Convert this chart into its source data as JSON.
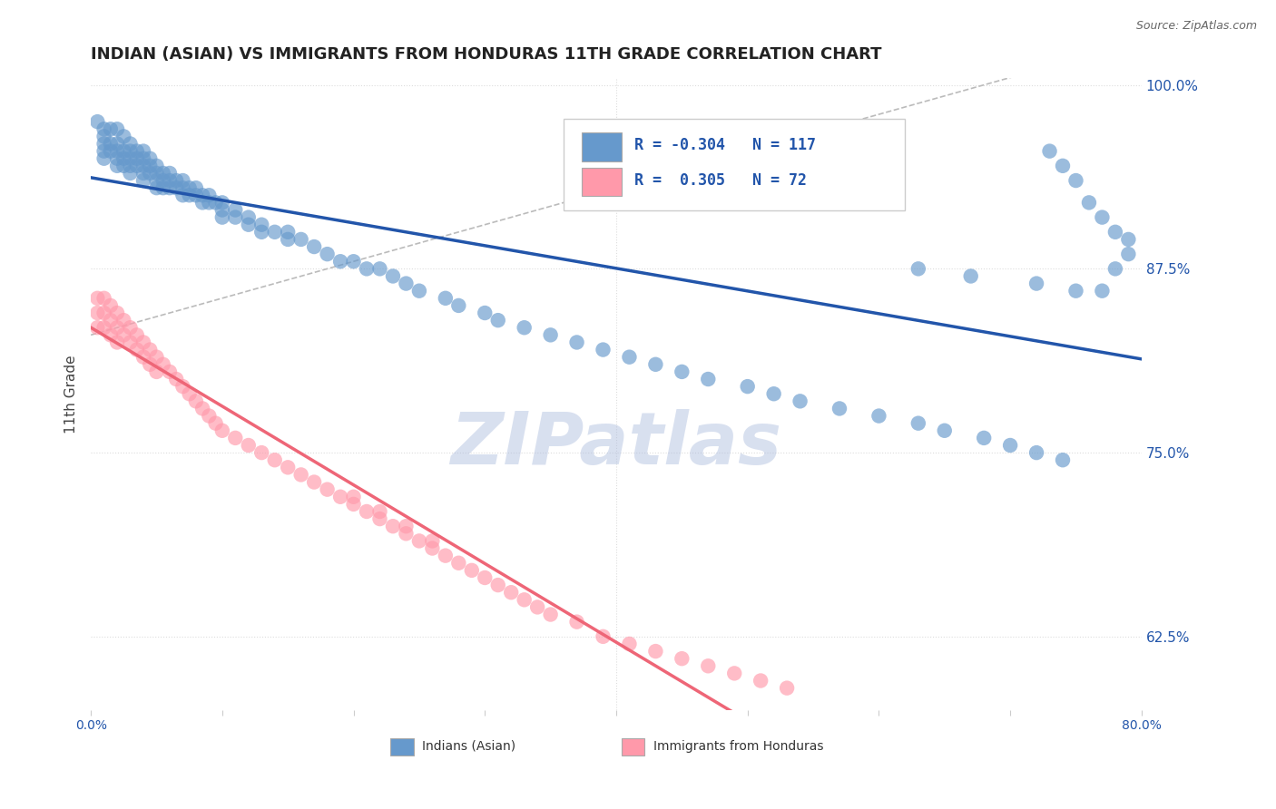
{
  "title": "INDIAN (ASIAN) VS IMMIGRANTS FROM HONDURAS 11TH GRADE CORRELATION CHART",
  "source_text": "Source: ZipAtlas.com",
  "ylabel": "11th Grade",
  "xlim": [
    0.0,
    0.8
  ],
  "ylim": [
    0.575,
    1.005
  ],
  "yticks": [
    0.625,
    0.75,
    0.875,
    1.0
  ],
  "ytick_labels": [
    "62.5%",
    "75.0%",
    "87.5%",
    "100.0%"
  ],
  "xticks": [
    0.0,
    0.1,
    0.2,
    0.3,
    0.4,
    0.5,
    0.6,
    0.7,
    0.8
  ],
  "xtick_labels": [
    "0.0%",
    "",
    "",
    "",
    "",
    "",
    "",
    "",
    "80.0%"
  ],
  "blue_R": -0.304,
  "blue_N": 117,
  "pink_R": 0.305,
  "pink_N": 72,
  "blue_color": "#6699CC",
  "pink_color": "#FF99AA",
  "blue_line_color": "#2255AA",
  "pink_line_color": "#EE6677",
  "dashed_line_color": "#BBBBBB",
  "watermark": "ZIPatlas",
  "watermark_color": "#AABBDD",
  "background_color": "#FFFFFF",
  "grid_color": "#DDDDDD",
  "title_color": "#222222",
  "axis_label_color": "#2255AA",
  "legend_blue_label": "Indians (Asian)",
  "legend_pink_label": "Immigrants from Honduras",
  "blue_scatter_x": [
    0.005,
    0.01,
    0.01,
    0.01,
    0.01,
    0.01,
    0.015,
    0.015,
    0.015,
    0.02,
    0.02,
    0.02,
    0.02,
    0.02,
    0.025,
    0.025,
    0.025,
    0.025,
    0.03,
    0.03,
    0.03,
    0.03,
    0.03,
    0.035,
    0.035,
    0.035,
    0.04,
    0.04,
    0.04,
    0.04,
    0.04,
    0.045,
    0.045,
    0.045,
    0.05,
    0.05,
    0.05,
    0.05,
    0.055,
    0.055,
    0.055,
    0.06,
    0.06,
    0.06,
    0.065,
    0.065,
    0.07,
    0.07,
    0.07,
    0.075,
    0.075,
    0.08,
    0.08,
    0.085,
    0.085,
    0.09,
    0.09,
    0.095,
    0.1,
    0.1,
    0.1,
    0.11,
    0.11,
    0.12,
    0.12,
    0.13,
    0.13,
    0.14,
    0.15,
    0.15,
    0.16,
    0.17,
    0.18,
    0.19,
    0.2,
    0.21,
    0.22,
    0.23,
    0.24,
    0.25,
    0.27,
    0.28,
    0.3,
    0.31,
    0.33,
    0.35,
    0.37,
    0.39,
    0.41,
    0.43,
    0.45,
    0.47,
    0.5,
    0.52,
    0.54,
    0.57,
    0.6,
    0.63,
    0.65,
    0.68,
    0.7,
    0.72,
    0.74,
    0.63,
    0.67,
    0.72,
    0.75,
    0.77,
    0.78,
    0.79,
    0.79,
    0.78,
    0.77,
    0.76,
    0.75,
    0.74,
    0.73
  ],
  "blue_scatter_y": [
    0.975,
    0.97,
    0.96,
    0.965,
    0.955,
    0.95,
    0.97,
    0.96,
    0.955,
    0.97,
    0.96,
    0.955,
    0.95,
    0.945,
    0.965,
    0.955,
    0.95,
    0.945,
    0.96,
    0.955,
    0.95,
    0.945,
    0.94,
    0.955,
    0.95,
    0.945,
    0.955,
    0.95,
    0.945,
    0.94,
    0.935,
    0.95,
    0.945,
    0.94,
    0.945,
    0.94,
    0.935,
    0.93,
    0.94,
    0.935,
    0.93,
    0.94,
    0.935,
    0.93,
    0.935,
    0.93,
    0.935,
    0.93,
    0.925,
    0.93,
    0.925,
    0.93,
    0.925,
    0.925,
    0.92,
    0.925,
    0.92,
    0.92,
    0.92,
    0.915,
    0.91,
    0.915,
    0.91,
    0.91,
    0.905,
    0.905,
    0.9,
    0.9,
    0.9,
    0.895,
    0.895,
    0.89,
    0.885,
    0.88,
    0.88,
    0.875,
    0.875,
    0.87,
    0.865,
    0.86,
    0.855,
    0.85,
    0.845,
    0.84,
    0.835,
    0.83,
    0.825,
    0.82,
    0.815,
    0.81,
    0.805,
    0.8,
    0.795,
    0.79,
    0.785,
    0.78,
    0.775,
    0.77,
    0.765,
    0.76,
    0.755,
    0.75,
    0.745,
    0.875,
    0.87,
    0.865,
    0.86,
    0.86,
    0.875,
    0.885,
    0.895,
    0.9,
    0.91,
    0.92,
    0.935,
    0.945,
    0.955
  ],
  "pink_scatter_x": [
    0.005,
    0.005,
    0.005,
    0.01,
    0.01,
    0.01,
    0.015,
    0.015,
    0.015,
    0.02,
    0.02,
    0.02,
    0.025,
    0.025,
    0.03,
    0.03,
    0.035,
    0.035,
    0.04,
    0.04,
    0.045,
    0.045,
    0.05,
    0.05,
    0.055,
    0.06,
    0.065,
    0.07,
    0.075,
    0.08,
    0.085,
    0.09,
    0.095,
    0.1,
    0.11,
    0.12,
    0.13,
    0.14,
    0.15,
    0.16,
    0.17,
    0.18,
    0.19,
    0.2,
    0.21,
    0.22,
    0.23,
    0.24,
    0.25,
    0.26,
    0.27,
    0.28,
    0.29,
    0.3,
    0.31,
    0.32,
    0.33,
    0.34,
    0.35,
    0.37,
    0.39,
    0.41,
    0.43,
    0.45,
    0.47,
    0.49,
    0.51,
    0.53,
    0.2,
    0.22,
    0.24,
    0.26
  ],
  "pink_scatter_y": [
    0.855,
    0.845,
    0.835,
    0.855,
    0.845,
    0.835,
    0.85,
    0.84,
    0.83,
    0.845,
    0.835,
    0.825,
    0.84,
    0.83,
    0.835,
    0.825,
    0.83,
    0.82,
    0.825,
    0.815,
    0.82,
    0.81,
    0.815,
    0.805,
    0.81,
    0.805,
    0.8,
    0.795,
    0.79,
    0.785,
    0.78,
    0.775,
    0.77,
    0.765,
    0.76,
    0.755,
    0.75,
    0.745,
    0.74,
    0.735,
    0.73,
    0.725,
    0.72,
    0.715,
    0.71,
    0.705,
    0.7,
    0.695,
    0.69,
    0.685,
    0.68,
    0.675,
    0.67,
    0.665,
    0.66,
    0.655,
    0.65,
    0.645,
    0.64,
    0.635,
    0.625,
    0.62,
    0.615,
    0.61,
    0.605,
    0.6,
    0.595,
    0.59,
    0.72,
    0.71,
    0.7,
    0.69
  ]
}
